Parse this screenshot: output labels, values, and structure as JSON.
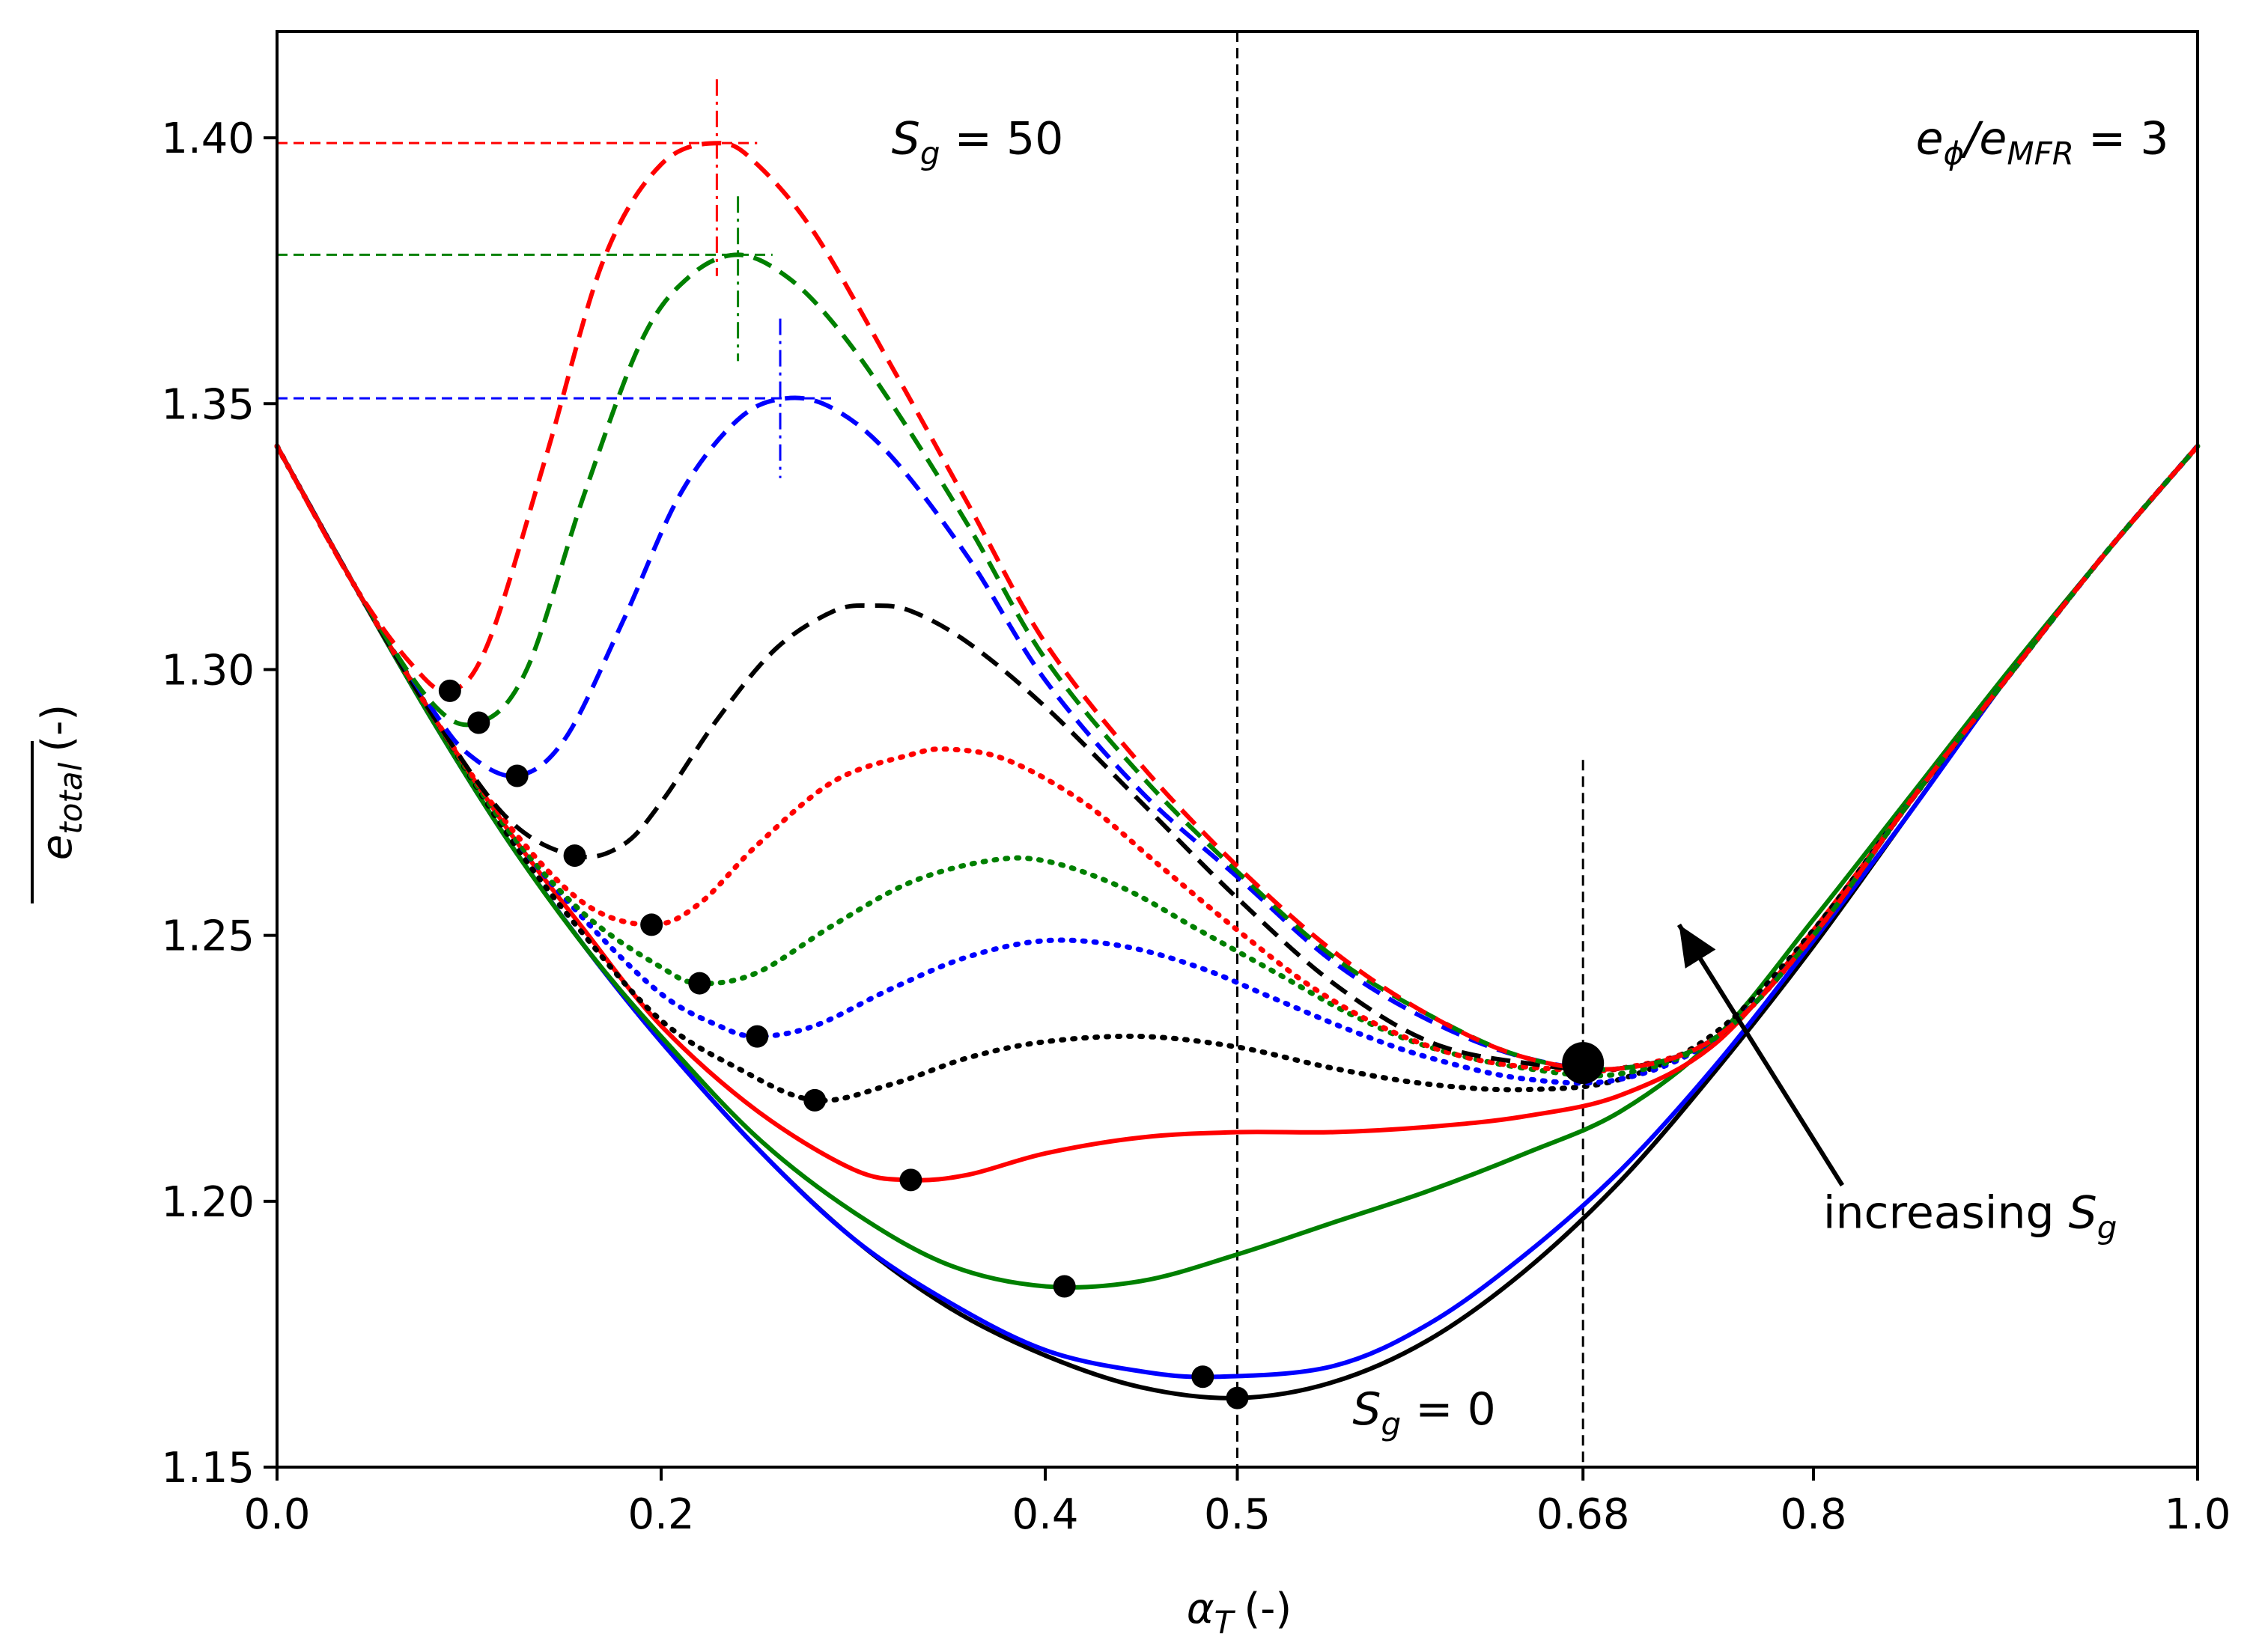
{
  "chart_data": {
    "type": "line",
    "title": "",
    "xlabel": {
      "symbol": "α",
      "sub": "T",
      "unit": "(-)"
    },
    "ylabel": {
      "symbol": "e",
      "sub": "total",
      "unit": "(-)"
    },
    "xlim": [
      0.0,
      1.0
    ],
    "ylim": [
      1.15,
      1.42
    ],
    "xticks": [
      {
        "value": 0.0,
        "label": "0.0"
      },
      {
        "value": 0.2,
        "label": "0.2"
      },
      {
        "value": 0.4,
        "label": "0.4"
      },
      {
        "value": 0.5,
        "label": "0.5"
      },
      {
        "value": 0.68,
        "label": "0.68"
      },
      {
        "value": 0.8,
        "label": "0.8"
      },
      {
        "value": 1.0,
        "label": "1.0"
      }
    ],
    "yticks": [
      {
        "value": 1.15,
        "label": "1.15"
      },
      {
        "value": 1.2,
        "label": "1.20"
      },
      {
        "value": 1.25,
        "label": "1.25"
      },
      {
        "value": 1.3,
        "label": "1.30"
      },
      {
        "value": 1.35,
        "label": "1.35"
      },
      {
        "value": 1.4,
        "label": "1.40"
      }
    ],
    "colors": {
      "red": "#ff0000",
      "green": "#008000",
      "blue": "#0000ff",
      "black": "#000000"
    },
    "series": [
      {
        "name": "solid-black",
        "color": "black",
        "style": "solid",
        "x": [
          0,
          0.04,
          0.08,
          0.12,
          0.16,
          0.2,
          0.25,
          0.3,
          0.35,
          0.4,
          0.45,
          0.5,
          0.55,
          0.6,
          0.65,
          0.7,
          0.75,
          0.8,
          0.85,
          0.9,
          0.95,
          1.0
        ],
        "y": [
          1.342,
          1.316,
          1.291,
          1.268,
          1.248,
          1.23,
          1.21,
          1.193,
          1.18,
          1.171,
          1.165,
          1.163,
          1.166,
          1.174,
          1.187,
          1.204,
          1.225,
          1.248,
          1.273,
          1.298,
          1.321,
          1.342
        ],
        "min": [
          0.5,
          1.163
        ]
      },
      {
        "name": "solid-blue",
        "color": "blue",
        "style": "solid",
        "x": [
          0,
          0.04,
          0.08,
          0.12,
          0.16,
          0.2,
          0.25,
          0.3,
          0.35,
          0.4,
          0.45,
          0.49,
          0.55,
          0.6,
          0.65,
          0.7,
          0.75,
          0.8,
          0.85,
          0.9,
          0.95,
          1.0
        ],
        "y": [
          1.342,
          1.316,
          1.291,
          1.268,
          1.248,
          1.23,
          1.21,
          1.193,
          1.181,
          1.172,
          1.168,
          1.167,
          1.169,
          1.177,
          1.19,
          1.206,
          1.226,
          1.249,
          1.273,
          1.298,
          1.321,
          1.342
        ],
        "min": [
          0.482,
          1.167
        ]
      },
      {
        "name": "solid-green",
        "color": "green",
        "style": "solid",
        "x": [
          0,
          0.04,
          0.08,
          0.12,
          0.16,
          0.2,
          0.25,
          0.3,
          0.35,
          0.4,
          0.45,
          0.5,
          0.55,
          0.6,
          0.65,
          0.7,
          0.75,
          0.8,
          0.85,
          0.9,
          0.95,
          1.0
        ],
        "y": [
          1.342,
          1.316,
          1.291,
          1.268,
          1.248,
          1.231,
          1.212,
          1.198,
          1.188,
          1.184,
          1.185,
          1.19,
          1.196,
          1.202,
          1.209,
          1.217,
          1.231,
          1.253,
          1.276,
          1.299,
          1.321,
          1.342
        ],
        "min": [
          0.41,
          1.184
        ]
      },
      {
        "name": "solid-red",
        "color": "red",
        "style": "solid",
        "x": [
          0,
          0.04,
          0.08,
          0.12,
          0.16,
          0.2,
          0.25,
          0.3,
          0.33,
          0.36,
          0.4,
          0.45,
          0.5,
          0.55,
          0.6,
          0.65,
          0.7,
          0.75,
          0.8,
          0.85,
          0.9,
          0.95,
          1.0
        ],
        "y": [
          1.342,
          1.316,
          1.292,
          1.27,
          1.251,
          1.233,
          1.217,
          1.206,
          1.204,
          1.205,
          1.209,
          1.212,
          1.213,
          1.213,
          1.214,
          1.216,
          1.22,
          1.23,
          1.251,
          1.275,
          1.298,
          1.321,
          1.342
        ],
        "min": [
          0.33,
          1.204
        ]
      },
      {
        "name": "dotted-black",
        "color": "black",
        "style": "dotted",
        "x": [
          0,
          0.04,
          0.08,
          0.12,
          0.16,
          0.2,
          0.24,
          0.28,
          0.32,
          0.36,
          0.4,
          0.45,
          0.5,
          0.55,
          0.6,
          0.65,
          0.7,
          0.75,
          0.8,
          0.85,
          0.9,
          0.95,
          1.0
        ],
        "y": [
          1.342,
          1.316,
          1.292,
          1.269,
          1.25,
          1.234,
          1.225,
          1.219,
          1.222,
          1.227,
          1.23,
          1.231,
          1.229,
          1.225,
          1.222,
          1.221,
          1.223,
          1.232,
          1.251,
          1.275,
          1.298,
          1.321,
          1.342
        ],
        "min": [
          0.28,
          1.219
        ]
      },
      {
        "name": "dotted-blue",
        "color": "blue",
        "style": "dotted",
        "x": [
          0,
          0.04,
          0.08,
          0.12,
          0.16,
          0.2,
          0.23,
          0.25,
          0.28,
          0.32,
          0.36,
          0.4,
          0.44,
          0.48,
          0.52,
          0.56,
          0.6,
          0.65,
          0.7,
          0.75,
          0.8,
          0.85,
          0.9,
          0.95,
          1.0
        ],
        "y": [
          1.342,
          1.316,
          1.292,
          1.27,
          1.253,
          1.239,
          1.233,
          1.231,
          1.233,
          1.24,
          1.246,
          1.249,
          1.248,
          1.244,
          1.238,
          1.232,
          1.227,
          1.223,
          1.223,
          1.231,
          1.25,
          1.275,
          1.298,
          1.321,
          1.342
        ],
        "min": [
          0.25,
          1.231
        ]
      },
      {
        "name": "dotted-green",
        "color": "green",
        "style": "dotted",
        "x": [
          0,
          0.04,
          0.08,
          0.12,
          0.16,
          0.2,
          0.22,
          0.25,
          0.29,
          0.33,
          0.37,
          0.4,
          0.44,
          0.48,
          0.52,
          0.56,
          0.6,
          0.65,
          0.7,
          0.75,
          0.8,
          0.85,
          0.9,
          0.95,
          1.0
        ],
        "y": [
          1.342,
          1.316,
          1.292,
          1.27,
          1.254,
          1.244,
          1.241,
          1.243,
          1.252,
          1.26,
          1.264,
          1.264,
          1.259,
          1.251,
          1.243,
          1.235,
          1.229,
          1.225,
          1.224,
          1.231,
          1.25,
          1.275,
          1.298,
          1.321,
          1.342
        ],
        "min": [
          0.22,
          1.241
        ]
      },
      {
        "name": "dotted-red",
        "color": "red",
        "style": "dotted",
        "x": [
          0,
          0.04,
          0.08,
          0.12,
          0.16,
          0.195,
          0.22,
          0.25,
          0.29,
          0.33,
          0.35,
          0.38,
          0.42,
          0.46,
          0.5,
          0.54,
          0.58,
          0.62,
          0.66,
          0.7,
          0.75,
          0.8,
          0.85,
          0.9,
          0.95,
          1.0
        ],
        "y": [
          1.342,
          1.316,
          1.292,
          1.271,
          1.256,
          1.252,
          1.256,
          1.267,
          1.279,
          1.284,
          1.285,
          1.283,
          1.275,
          1.263,
          1.251,
          1.24,
          1.232,
          1.227,
          1.225,
          1.225,
          1.231,
          1.25,
          1.275,
          1.298,
          1.321,
          1.342
        ],
        "min": [
          0.195,
          1.252
        ]
      },
      {
        "name": "dashed-black",
        "color": "black",
        "style": "dashed",
        "x": [
          0,
          0.04,
          0.08,
          0.12,
          0.155,
          0.18,
          0.2,
          0.23,
          0.26,
          0.29,
          0.31,
          0.33,
          0.36,
          0.4,
          0.45,
          0.5,
          0.55,
          0.6,
          0.65,
          0.7,
          0.75,
          0.8,
          0.85,
          0.9,
          0.95,
          1.0
        ],
        "y": [
          1.342,
          1.316,
          1.292,
          1.272,
          1.265,
          1.267,
          1.275,
          1.291,
          1.304,
          1.311,
          1.312,
          1.311,
          1.305,
          1.293,
          1.275,
          1.257,
          1.241,
          1.23,
          1.226,
          1.225,
          1.231,
          1.25,
          1.275,
          1.298,
          1.321,
          1.342
        ],
        "min": [
          0.155,
          1.265
        ]
      },
      {
        "name": "dashed-blue",
        "color": "blue",
        "style": "dashed",
        "x": [
          0,
          0.04,
          0.08,
          0.1,
          0.125,
          0.15,
          0.18,
          0.21,
          0.24,
          0.265,
          0.29,
          0.32,
          0.36,
          0.4,
          0.45,
          0.5,
          0.55,
          0.6,
          0.65,
          0.7,
          0.75,
          0.8,
          0.85,
          0.9,
          0.95,
          1.0
        ],
        "y": [
          1.342,
          1.316,
          1.293,
          1.284,
          1.28,
          1.287,
          1.309,
          1.333,
          1.347,
          1.351,
          1.349,
          1.34,
          1.321,
          1.298,
          1.277,
          1.261,
          1.245,
          1.234,
          1.227,
          1.225,
          1.231,
          1.25,
          1.275,
          1.298,
          1.321,
          1.342
        ],
        "min": [
          0.125,
          1.28
        ],
        "peak": [
          0.262,
          1.351
        ]
      },
      {
        "name": "dashed-green",
        "color": "green",
        "style": "dashed",
        "x": [
          0,
          0.04,
          0.08,
          0.105,
          0.13,
          0.16,
          0.19,
          0.215,
          0.24,
          0.265,
          0.29,
          0.32,
          0.36,
          0.4,
          0.45,
          0.5,
          0.55,
          0.6,
          0.65,
          0.7,
          0.75,
          0.8,
          0.85,
          0.9,
          0.95,
          1.0
        ],
        "y": [
          1.342,
          1.316,
          1.294,
          1.29,
          1.3,
          1.333,
          1.362,
          1.374,
          1.378,
          1.374,
          1.365,
          1.35,
          1.327,
          1.302,
          1.28,
          1.262,
          1.246,
          1.235,
          1.227,
          1.225,
          1.231,
          1.25,
          1.275,
          1.298,
          1.321,
          1.342
        ],
        "min": [
          0.105,
          1.29
        ],
        "peak": [
          0.24,
          1.378
        ]
      },
      {
        "name": "dashed-red",
        "color": "red",
        "style": "dashed",
        "x": [
          0,
          0.04,
          0.07,
          0.09,
          0.11,
          0.14,
          0.17,
          0.2,
          0.23,
          0.25,
          0.28,
          0.32,
          0.36,
          0.4,
          0.45,
          0.5,
          0.55,
          0.6,
          0.65,
          0.7,
          0.75,
          0.8,
          0.85,
          0.9,
          0.95,
          1.0
        ],
        "y": [
          1.342,
          1.316,
          1.301,
          1.296,
          1.305,
          1.34,
          1.377,
          1.395,
          1.399,
          1.395,
          1.382,
          1.357,
          1.331,
          1.305,
          1.282,
          1.263,
          1.247,
          1.235,
          1.227,
          1.225,
          1.231,
          1.25,
          1.275,
          1.298,
          1.321,
          1.342
        ],
        "min": [
          0.09,
          1.296
        ],
        "peak": [
          0.229,
          1.399
        ]
      }
    ],
    "annotations": {
      "sg_max": {
        "symbol": "S",
        "sub": "g",
        "rest": " = 50",
        "x": 0.32,
        "y": 1.397,
        "color": "red"
      },
      "sg_zero": {
        "symbol": "S",
        "sub": "g",
        "rest": " = 0",
        "x": 0.56,
        "y": 1.158,
        "color": "black"
      },
      "ratio": {
        "a": "e",
        "a_sub": "ϕ",
        "b": "/e",
        "b_sub": "MFR",
        "rest": " = 3",
        "x": 0.985,
        "y": 1.397
      },
      "increasing": {
        "text": "increasing ",
        "symbol": "S",
        "sub": "g",
        "x": 0.805,
        "y": 1.195
      },
      "arrow": {
        "from": [
          0.815,
          1.203
        ],
        "to": [
          0.73,
          1.252
        ]
      },
      "vlines": [
        0.5,
        0.68
      ],
      "big_marker": [
        0.68,
        1.226
      ],
      "peak_hlines": [
        {
          "y": 1.399,
          "x_end": 0.25,
          "color": "red"
        },
        {
          "y": 1.378,
          "x_end": 0.258,
          "color": "green"
        },
        {
          "y": 1.351,
          "x_end": 0.29,
          "color": "blue"
        }
      ],
      "peak_vlines": [
        {
          "x": 0.229,
          "y0": 1.374,
          "y1": 1.411,
          "color": "red"
        },
        {
          "x": 0.24,
          "y0": 1.358,
          "y1": 1.389,
          "color": "green"
        },
        {
          "x": 0.262,
          "y0": 1.336,
          "y1": 1.366,
          "color": "blue"
        }
      ]
    }
  }
}
